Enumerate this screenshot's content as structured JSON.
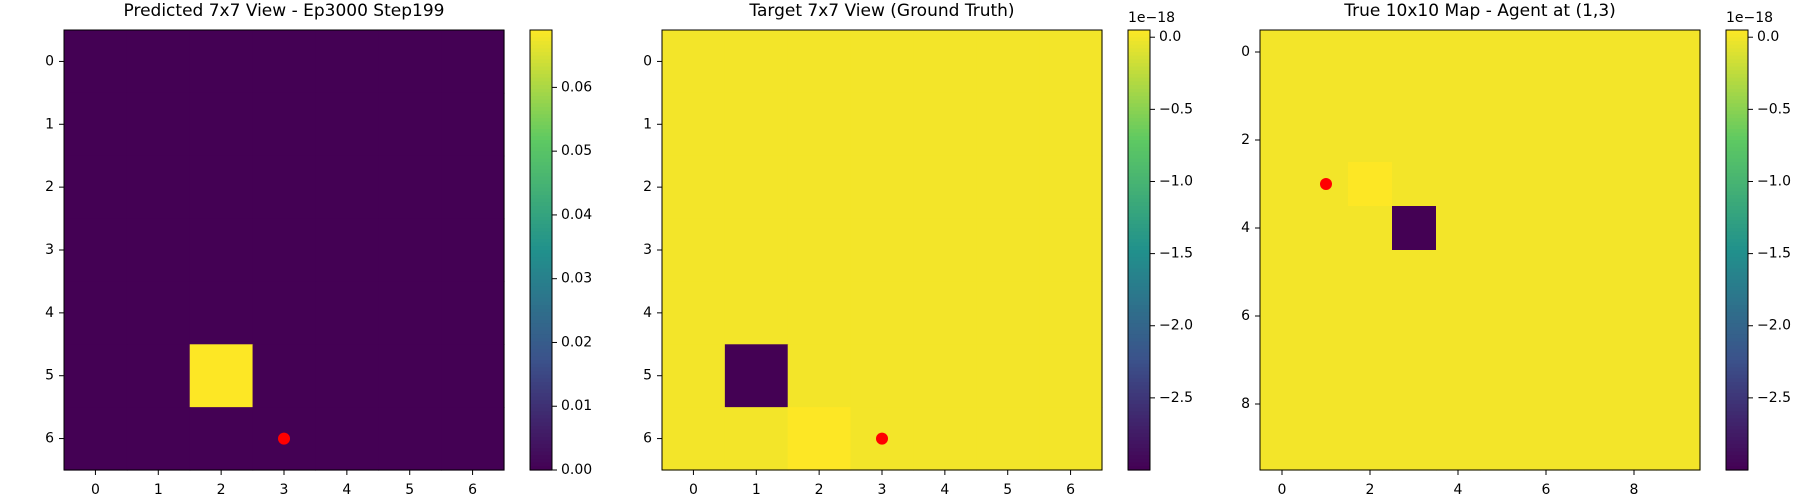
{
  "figure": {
    "background": "#ffffff"
  },
  "colormap": {
    "name": "viridis",
    "stops": [
      "#440154",
      "#3b528b",
      "#21918c",
      "#5ec962",
      "#fde725"
    ]
  },
  "chart_data": [
    {
      "type": "heatmap",
      "title": "Predicted 7x7 View - Ep3000 Step199",
      "size": 7,
      "xticks": [
        0,
        1,
        2,
        3,
        4,
        5,
        6
      ],
      "yticks": [
        0,
        1,
        2,
        3,
        4,
        5,
        6
      ],
      "vmin": 0,
      "vmax": 0.069,
      "cells_note": "all cells 0 unless listed",
      "cells": [
        {
          "row": 5,
          "col": 2,
          "value": 0.069
        }
      ],
      "agent_marker": {
        "x": 3,
        "y": 6,
        "color": "#ff0000"
      },
      "colorbar": {
        "ticks": [
          0.0,
          0.01,
          0.02,
          0.03,
          0.04,
          0.05,
          0.06
        ],
        "tick_labels": [
          "0.00",
          "0.01",
          "0.02",
          "0.03",
          "0.04",
          "0.05",
          "0.06"
        ],
        "offset_label": ""
      }
    },
    {
      "type": "heatmap",
      "title": "Target 7x7 View (Ground Truth)",
      "size": 7,
      "xticks": [
        0,
        1,
        2,
        3,
        4,
        5,
        6
      ],
      "yticks": [
        0,
        1,
        2,
        3,
        4,
        5,
        6
      ],
      "vmin": -3e-18,
      "vmax": 5e-20,
      "cells_note": "all cells 0 unless listed",
      "cells": [
        {
          "row": 5,
          "col": 1,
          "value": -3e-18
        },
        {
          "row": 6,
          "col": 2,
          "value": 5e-20
        }
      ],
      "agent_marker": {
        "x": 3,
        "y": 6,
        "color": "#ff0000"
      },
      "colorbar": {
        "ticks": [
          0.0,
          -5e-19,
          -1e-18,
          -1.5e-18,
          -2e-18,
          -2.5e-18
        ],
        "tick_labels": [
          "0.0",
          "−0.5",
          "−1.0",
          "−1.5",
          "−2.0",
          "−2.5"
        ],
        "offset_label": "1e−18"
      }
    },
    {
      "type": "heatmap",
      "title": "True 10x10 Map - Agent at (1,3)",
      "size": 10,
      "xticks": [
        0,
        2,
        4,
        6,
        8
      ],
      "yticks": [
        0,
        2,
        4,
        6,
        8
      ],
      "vmin": -3e-18,
      "vmax": 5e-20,
      "cells_note": "all cells 0 unless listed",
      "cells": [
        {
          "row": 3,
          "col": 2,
          "value": 5e-20
        },
        {
          "row": 4,
          "col": 3,
          "value": -3e-18
        }
      ],
      "agent_marker": {
        "x": 1,
        "y": 3,
        "color": "#ff0000"
      },
      "colorbar": {
        "ticks": [
          0.0,
          -5e-19,
          -1e-18,
          -1.5e-18,
          -2e-18,
          -2.5e-18
        ],
        "tick_labels": [
          "0.0",
          "−0.5",
          "−1.0",
          "−1.5",
          "−2.0",
          "−2.5"
        ],
        "offset_label": "1e−18"
      }
    }
  ]
}
